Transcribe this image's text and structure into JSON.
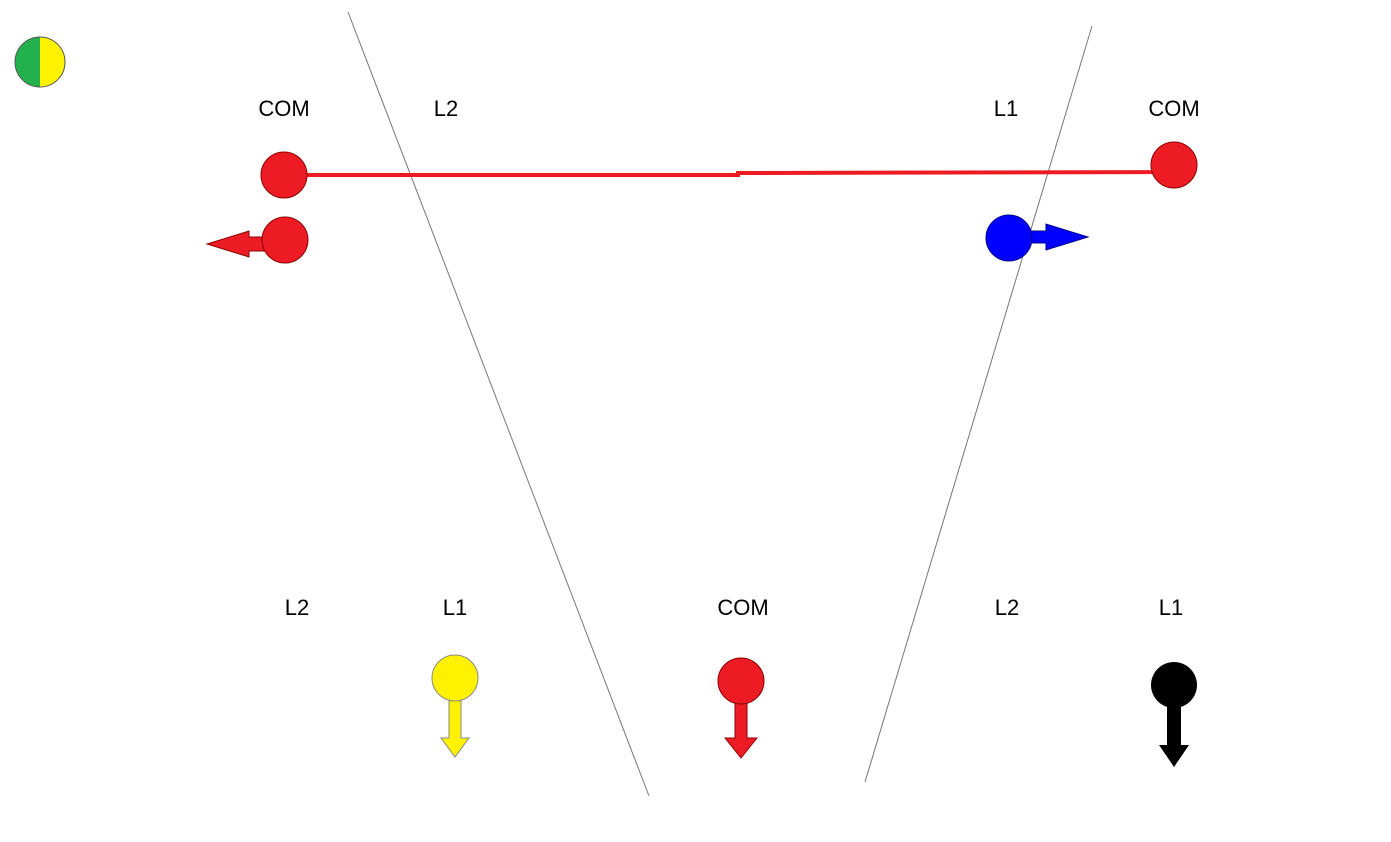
{
  "top_labels": [
    "COM",
    "L2",
    "L1",
    "COM"
  ],
  "bottom_labels": [
    "L2",
    "L1",
    "COM",
    "L2",
    "L1"
  ]
}
